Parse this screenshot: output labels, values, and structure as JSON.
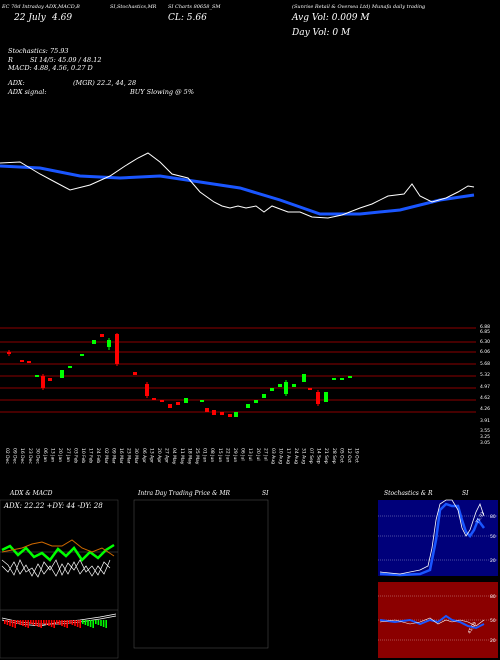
{
  "header": {
    "cols": [
      "EC 70d Intraday ADX,MACD,B",
      "SI,Stochastics,MR",
      "SI Charts 80658_SM",
      "(Sunrise Retail & Oversea Ltd) Munafa daily trading"
    ]
  },
  "quote": {
    "date": "22 July",
    "open_label": "4.69",
    "close_label": "CL: 5.66",
    "avg_vol": "Avg Vol: 0.009 M",
    "day_vol": "Day Vol: 0   M"
  },
  "indicators": {
    "stoch": "Stochastics: 75.93",
    "rsi": "SI 14/5: 45.09 / 48.12",
    "r_label": "R",
    "macd": "MACD: 4.88, 4.56, 0.27 D",
    "adx": "ADX:",
    "adx_val": "(MGR) 22.2, 44, 28",
    "adx_signal": "ADX  signal:",
    "buy_signal": "BUY Slowing @ 5%"
  },
  "price_axis": [
    "6.88",
    "6.85",
    "6.30",
    "6.06",
    "5.68",
    "5.32",
    "4.97",
    "4.62",
    "4.26",
    "3.91",
    "3.55",
    "3.25",
    "3.05"
  ],
  "date_axis": [
    "02 Dec",
    "09 Dec",
    "16 Dec",
    "23 Dec",
    "30 Dec",
    "06 Jan",
    "13 Jan",
    "20 Jan",
    "27 Jan",
    "03 Feb",
    "10 Feb",
    "17 Feb",
    "24 Feb",
    "02 Mar",
    "09 Mar",
    "16 Mar",
    "23 Mar",
    "30 Mar",
    "06 Apr",
    "13 Apr",
    "20 Apr",
    "27 Apr",
    "04 May",
    "11 May",
    "18 May",
    "25 May",
    "01 Jun",
    "08 Jun",
    "15 Jun",
    "22 Jun",
    "29 Jun",
    "06 Jul",
    "13 Jul",
    "20 Jul",
    "27 Jul",
    "03 Aug",
    "10 Aug",
    "17 Aug",
    "24 Aug",
    "31 Aug",
    "07 Sep",
    "14 Sep",
    "21 Sep",
    "28 Sep",
    "05 Oct",
    "12 Oct",
    "19 Oct"
  ],
  "panels": {
    "adx": {
      "title": "ADX  & MACD",
      "readout": "ADX: 22.22  +DY: 44  -DY: 28"
    },
    "intra": {
      "title": "Intra  Day Trading Price  & MR",
      "title_right": "SI"
    },
    "stoch": {
      "title": "Stochastics & R",
      "title_right": "SI",
      "upper_ticks": [
        "80",
        "50",
        "20"
      ],
      "lower_ticks": [
        "80",
        "50",
        "20"
      ],
      "stoch_readout": "75.93",
      "rsi_readout": "45.09"
    }
  },
  "colors": {
    "bg": "#000000",
    "up": "#00ff00",
    "down": "#ff0000",
    "avg": "#1a56ff",
    "price": "#ffffff",
    "grid": "#8b0000",
    "stoch_bg": "#00007a",
    "rsi_bg": "#8b0000"
  }
}
